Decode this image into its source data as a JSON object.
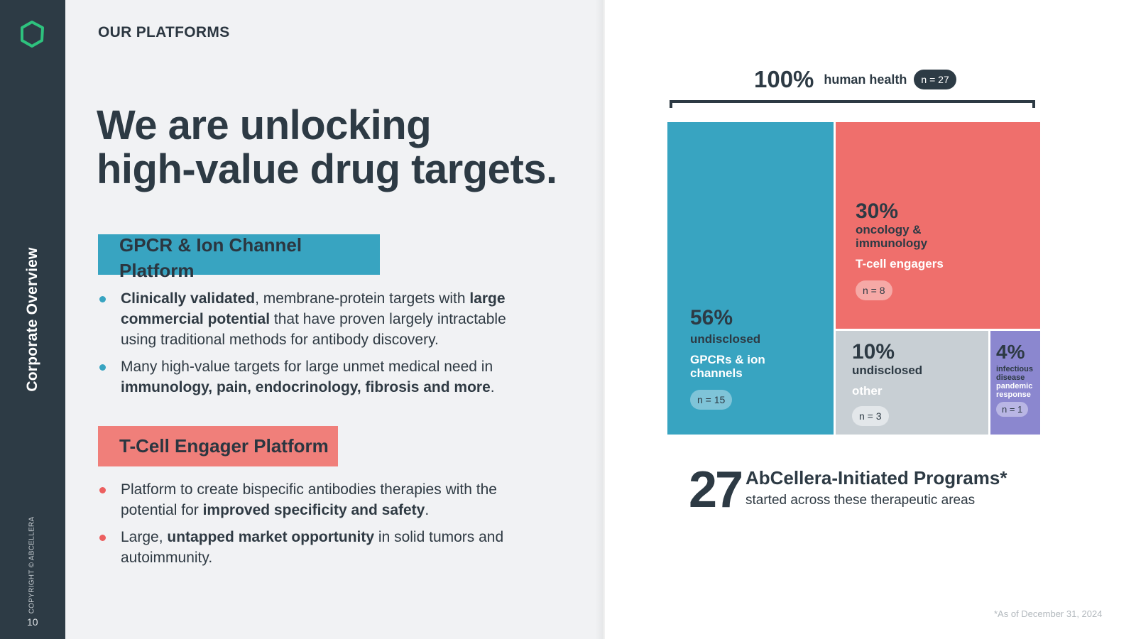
{
  "sidebar": {
    "section_label": "Corporate Overview",
    "copyright": "COPYRIGHT © ABCELLERA",
    "page_number": "10"
  },
  "header": {
    "section_title": "OUR PLATFORMS"
  },
  "headline": {
    "line1": "We are unlocking",
    "line2": "high-value drug targets."
  },
  "platforms": [
    {
      "name": "GPCR & Ion Channel Platform",
      "name_line1": "GPCR & Ion Channel",
      "name_line2": "Platform",
      "color": "#38a4c1",
      "bullets": [
        {
          "parts": [
            {
              "t": "Clinically validated",
              "b": true
            },
            {
              "t": ", membrane-protein targets with ",
              "b": false
            },
            {
              "t": "large commercial potential",
              "b": true
            },
            {
              "t": " that have proven largely intractable using traditional methods for antibody discovery.",
              "b": false
            }
          ]
        },
        {
          "parts": [
            {
              "t": "Many high-value targets for large unmet medical need in ",
              "b": false
            },
            {
              "t": "immunology, pain, endocrinology, fibrosis and more",
              "b": true
            },
            {
              "t": ".",
              "b": false
            }
          ]
        }
      ]
    },
    {
      "name": "T-Cell Engager Platform",
      "color": "#f07f7a",
      "bullets": [
        {
          "parts": [
            {
              "t": "Platform to create bispecific antibodies therapies with the potential for ",
              "b": false
            },
            {
              "t": "improved specificity and safety",
              "b": true
            },
            {
              "t": ".",
              "b": false
            }
          ]
        },
        {
          "parts": [
            {
              "t": "Large, ",
              "b": false
            },
            {
              "t": "untapped market opportunity",
              "b": true
            },
            {
              "t": " in solid tumors and autoimmunity.",
              "b": false
            }
          ]
        }
      ]
    }
  ],
  "chart_data": {
    "type": "treemap",
    "total": {
      "percent": "100%",
      "label": "human health",
      "n": "n = 27"
    },
    "segments": [
      {
        "percent": "56%",
        "value": 56,
        "area": "undisclosed",
        "sub": "GPCRs & ion channels",
        "n": "n = 15",
        "color": "#38a4c1"
      },
      {
        "percent": "30%",
        "value": 30,
        "area": "oncology & immunology",
        "sub": "T-cell engagers",
        "n": "n = 8",
        "color": "#ef6f6c"
      },
      {
        "percent": "10%",
        "value": 10,
        "area": "undisclosed",
        "sub": "other",
        "n": "n = 3",
        "color": "#c8cfd4"
      },
      {
        "percent": "4%",
        "value": 4,
        "area": "infectious disease",
        "sub": "pandemic response",
        "n": "n = 1",
        "color": "#8b87cf"
      }
    ]
  },
  "summary": {
    "number": "27",
    "title": "AbCellera-Initiated Programs*",
    "subtitle": "started across these therapeutic areas"
  },
  "footnote": "*As of December 31, 2024",
  "colors": {
    "sidebar": "#2d3b45",
    "logo": "#2ec27e",
    "panel": "#f1f2f4"
  }
}
